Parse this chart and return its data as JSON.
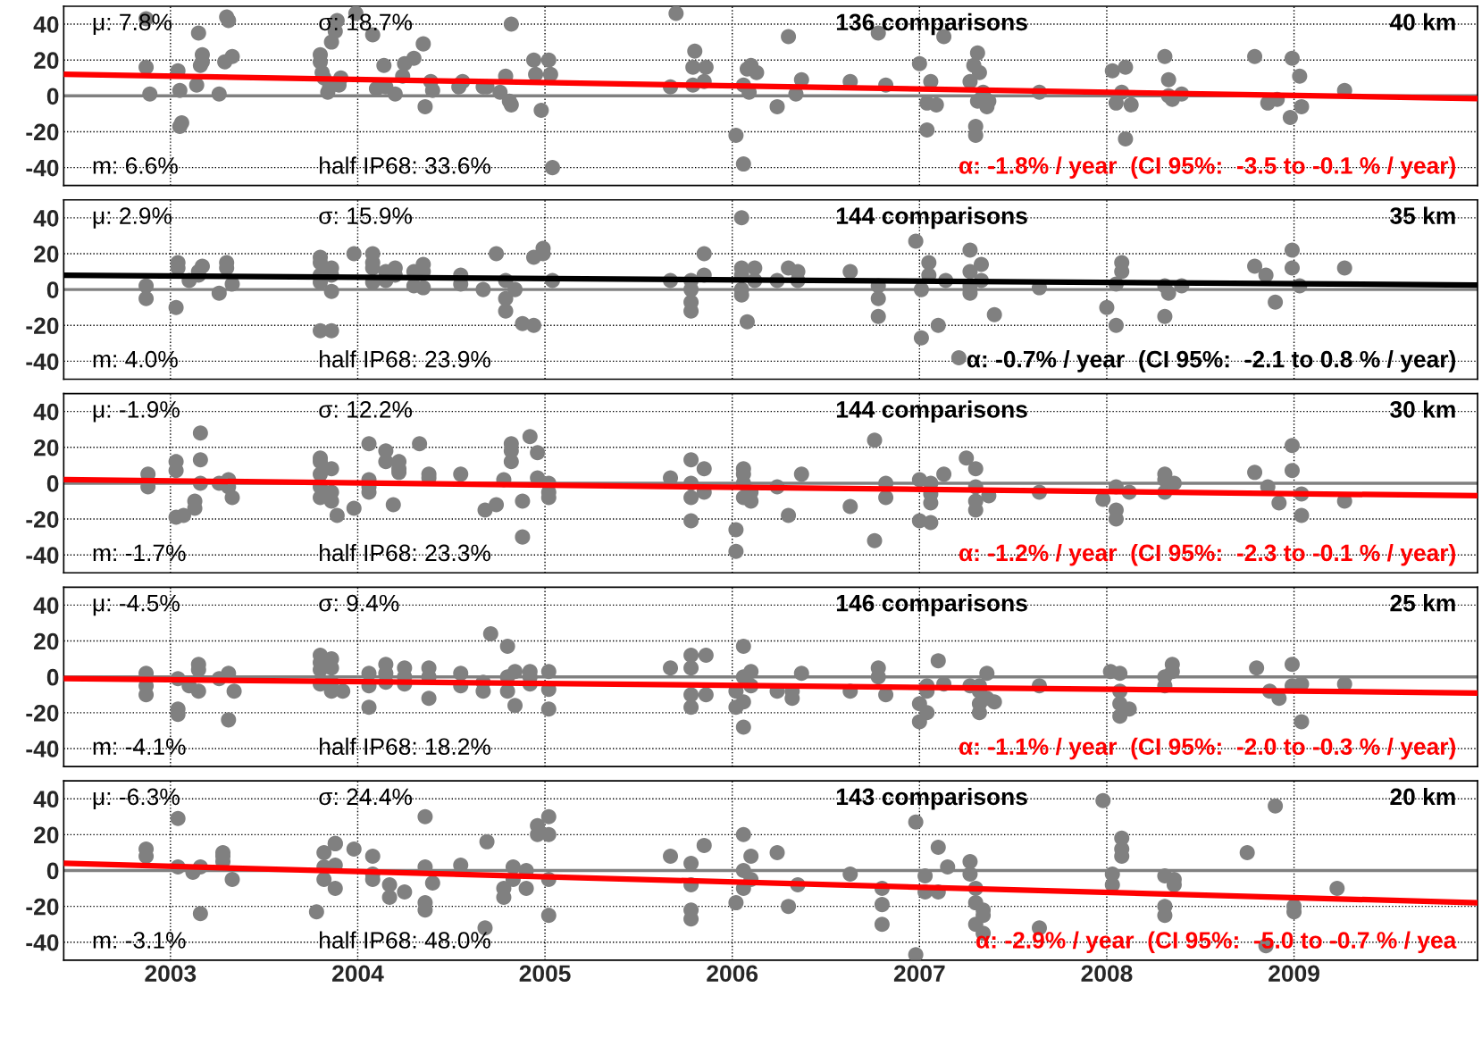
{
  "chart_data": [
    {
      "type": "scatter",
      "xlim": [
        2002.43,
        2009.98
      ],
      "ylim": [
        -50,
        50
      ],
      "xticks": [
        2003,
        2004,
        2005,
        2006,
        2007,
        2008,
        2009
      ],
      "yticks": [
        -40,
        -20,
        0,
        20,
        40
      ],
      "grid": true,
      "tick_labels": "y",
      "ref_lines": [
        {
          "axis": "y",
          "value": 0,
          "color": "#808080"
        }
      ],
      "annotations": [
        "μ: 7.8%",
        "σ: 18.7%",
        "136 comparisons",
        "40 km",
        "m: 6.6%",
        "half IP68: 33.6%",
        "α: -1.8% / year  (CI 95%:  -3.5 to -0.1 % / year)"
      ],
      "series": [
        {
          "color": "#808080",
          "marker": "circle",
          "x": [
            2002.87,
            2002.87,
            2002.89,
            2003.04,
            2003.05,
            2003.06,
            2003.05,
            2003.14,
            2003.15,
            2003.16,
            2003.17,
            2003.17,
            2003.26,
            2003.3,
            2003.31,
            2003.29,
            2003.33,
            2003.8,
            2003.81,
            2003.82,
            2003.84,
            2003.85,
            2003.86,
            2003.88,
            2003.89,
            2003.9,
            2003.91,
            2003.8,
            2003.99,
            2004.08,
            2004.1,
            2004.14,
            2004.15,
            2004.2,
            2004.24,
            2004.25,
            2004.3,
            2004.35,
            2004.36,
            2004.39,
            2004.4,
            2004.54,
            2004.56,
            2004.67,
            2004.69,
            2004.76,
            2004.79,
            2004.81,
            2004.82,
            2004.82,
            2004.94,
            2004.95,
            2004.98,
            2005.02,
            2005.04,
            2005.03,
            2005.67,
            2005.7,
            2005.8,
            2005.79,
            2005.79,
            2005.85,
            2005.86,
            2006.02,
            2006.06,
            2006.06,
            2006.08,
            2006.09,
            2006.1,
            2006.13,
            2006.24,
            2006.3,
            2006.34,
            2006.37,
            2006.63,
            2006.78,
            2006.82,
            2007.0,
            2007.04,
            2007.06,
            2007.04,
            2007.09,
            2007.13,
            2007.27,
            2007.29,
            2007.31,
            2007.31,
            2007.32,
            2007.3,
            2007.3,
            2007.34,
            2007.36,
            2007.37,
            2007.64,
            2008.03,
            2008.05,
            2008.08,
            2008.1,
            2008.1,
            2008.13,
            2008.31,
            2008.33,
            2008.33,
            2008.35,
            2008.4,
            2008.79,
            2008.86,
            2008.91,
            2008.98,
            2008.99,
            2009.03,
            2009.04,
            2009.27
          ],
          "values": [
            43,
            16,
            1,
            14,
            3,
            -15,
            -17,
            6,
            35,
            17,
            23,
            19,
            1,
            44,
            42,
            19,
            22,
            19,
            13,
            10,
            2,
            5,
            30,
            36,
            42,
            6,
            10,
            23,
            46,
            34,
            4,
            17,
            5,
            1,
            11,
            18,
            21,
            29,
            -6,
            8,
            3,
            5,
            8,
            5,
            5,
            2,
            11,
            -3,
            -5,
            40,
            20,
            12,
            -8,
            20,
            -40,
            12,
            5,
            46,
            25,
            16,
            6,
            8,
            16,
            -22,
            -38,
            6,
            15,
            2,
            17,
            13,
            -6,
            33,
            1,
            9,
            8,
            35,
            6,
            18,
            -19,
            8,
            -4,
            -5,
            33,
            8,
            17,
            24,
            -3,
            13,
            -17,
            -22,
            2,
            -6,
            -3,
            2,
            14,
            -4,
            2,
            16,
            -24,
            -5,
            22,
            9,
            0,
            -2,
            1,
            22,
            -4,
            -2,
            -12,
            21,
            11,
            -6,
            3
          ]
        },
        {
          "type": "line",
          "color": "#ff0000",
          "x": [
            2002.43,
            2009.98
          ],
          "values": [
            12,
            -1.5
          ]
        }
      ]
    },
    {
      "type": "scatter",
      "xlim": [
        2002.43,
        2009.98
      ],
      "ylim": [
        -50,
        50
      ],
      "xticks": [
        2003,
        2004,
        2005,
        2006,
        2007,
        2008,
        2009
      ],
      "yticks": [
        -40,
        -20,
        0,
        20,
        40
      ],
      "grid": true,
      "tick_labels": "y",
      "ref_lines": [
        {
          "axis": "y",
          "value": 0,
          "color": "#808080"
        }
      ],
      "annotations": [
        "μ: 2.9%",
        "σ: 15.9%",
        "144 comparisons",
        "35 km",
        "m: 4.0%",
        "half IP68: 23.9%",
        "α: -0.7% / year  (CI 95%:  -2.1 to 0.8 % / year)"
      ],
      "series": [
        {
          "color": "#808080",
          "marker": "circle",
          "x": [
            2002.87,
            2002.87,
            2003.03,
            2003.04,
            2003.04,
            2003.1,
            2003.15,
            2003.15,
            2003.17,
            2003.26,
            2003.3,
            2003.3,
            2003.33,
            2003.8,
            2003.8,
            2003.8,
            2003.8,
            2003.8,
            2003.86,
            2003.86,
            2003.86,
            2003.86,
            2003.98,
            2004.08,
            2004.08,
            2004.08,
            2004.08,
            2004.15,
            2004.15,
            2004.2,
            2004.2,
            2004.3,
            2004.3,
            2004.35,
            2004.35,
            2004.35,
            2004.55,
            2004.55,
            2004.67,
            2004.74,
            2004.79,
            2004.79,
            2004.79,
            2004.84,
            2004.88,
            2004.94,
            2004.94,
            2004.99,
            2004.99,
            2005.04,
            2005.67,
            2005.78,
            2005.78,
            2005.78,
            2005.78,
            2005.85,
            2005.85,
            2006.05,
            2006.05,
            2006.05,
            2006.05,
            2006.05,
            2006.08,
            2006.12,
            2006.12,
            2006.24,
            2006.3,
            2006.35,
            2006.35,
            2006.63,
            2006.78,
            2006.78,
            2006.78,
            2006.98,
            2007.01,
            2007.01,
            2007.05,
            2007.05,
            2007.1,
            2007.14,
            2007.21,
            2007.27,
            2007.27,
            2007.27,
            2007.27,
            2007.33,
            2007.33,
            2007.4,
            2007.64,
            2008.0,
            2008.05,
            2008.05,
            2008.08,
            2008.08,
            2008.31,
            2008.31,
            2008.33,
            2008.4,
            2008.79,
            2008.85,
            2008.9,
            2008.99,
            2008.99,
            2009.03,
            2009.27
          ],
          "values": [
            2,
            -5,
            -10,
            15,
            12,
            5,
            8,
            10,
            13,
            -2,
            15,
            12,
            3,
            18,
            15,
            8,
            4,
            -23,
            12,
            8,
            -1,
            -23,
            20,
            20,
            15,
            12,
            4,
            10,
            5,
            12,
            8,
            10,
            2,
            14,
            10,
            1,
            8,
            3,
            0,
            20,
            5,
            -5,
            -12,
            0,
            -19,
            -20,
            18,
            23,
            20,
            5,
            5,
            -12,
            -7,
            0,
            5,
            8,
            20,
            40,
            12,
            8,
            0,
            -3,
            -18,
            12,
            5,
            5,
            12,
            10,
            5,
            10,
            -15,
            -5,
            2,
            27,
            -27,
            0,
            15,
            8,
            -20,
            5,
            -38,
            22,
            10,
            2,
            -2,
            14,
            5,
            -14,
            1,
            -10,
            -20,
            3,
            15,
            10,
            -15,
            2,
            -2,
            2,
            13,
            8,
            -7,
            22,
            12,
            2,
            12
          ]
        },
        {
          "type": "line",
          "color": "#000000",
          "x": [
            2002.43,
            2009.98
          ],
          "values": [
            8,
            2.5
          ]
        }
      ]
    },
    {
      "type": "scatter",
      "xlim": [
        2002.43,
        2009.98
      ],
      "ylim": [
        -50,
        50
      ],
      "xticks": [
        2003,
        2004,
        2005,
        2006,
        2007,
        2008,
        2009
      ],
      "yticks": [
        -40,
        -20,
        0,
        20,
        40
      ],
      "grid": true,
      "tick_labels": "y",
      "ref_lines": [
        {
          "axis": "y",
          "value": 0,
          "color": "#808080"
        }
      ],
      "annotations": [
        "μ: -1.9%",
        "σ: 12.2%",
        "144 comparisons",
        "30 km",
        "m: -1.7%",
        "half IP68: 23.3%",
        "α: -1.2% / year  (CI 95%:  -2.3 to -0.1 % / year)"
      ],
      "series": [
        {
          "color": "#808080",
          "marker": "circle",
          "x": [
            2002.88,
            2002.88,
            2003.03,
            2003.03,
            2003.03,
            2003.07,
            2003.13,
            2003.13,
            2003.16,
            2003.16,
            2003.16,
            2003.26,
            2003.31,
            2003.31,
            2003.33,
            2003.8,
            2003.8,
            2003.8,
            2003.8,
            2003.8,
            2003.86,
            2003.86,
            2003.86,
            2003.89,
            2003.98,
            2004.06,
            2004.06,
            2004.06,
            2004.06,
            2004.15,
            2004.15,
            2004.19,
            2004.22,
            2004.22,
            2004.22,
            2004.33,
            2004.38,
            2004.38,
            2004.55,
            2004.68,
            2004.74,
            2004.78,
            2004.82,
            2004.82,
            2004.82,
            2004.88,
            2004.88,
            2004.92,
            2004.96,
            2004.96,
            2005.02,
            2005.02,
            2005.02,
            2005.67,
            2005.78,
            2005.78,
            2005.78,
            2005.78,
            2005.85,
            2005.85,
            2006.02,
            2006.02,
            2006.06,
            2006.06,
            2006.06,
            2006.06,
            2006.1,
            2006.1,
            2006.24,
            2006.3,
            2006.37,
            2006.63,
            2006.76,
            2006.76,
            2006.82,
            2006.82,
            2007.0,
            2007.0,
            2007.06,
            2007.06,
            2007.06,
            2007.06,
            2007.13,
            2007.25,
            2007.3,
            2007.3,
            2007.3,
            2007.3,
            2007.37,
            2007.64,
            2007.98,
            2008.05,
            2008.05,
            2008.05,
            2008.12,
            2008.31,
            2008.31,
            2008.31,
            2008.36,
            2008.79,
            2008.86,
            2008.92,
            2008.99,
            2008.99,
            2009.04,
            2009.04,
            2009.27
          ],
          "values": [
            -2,
            5,
            12,
            7,
            -19,
            -18,
            -10,
            -14,
            13,
            28,
            0,
            0,
            2,
            -2,
            -8,
            14,
            12,
            5,
            -2,
            -8,
            8,
            -5,
            -10,
            -18,
            -14,
            22,
            -5,
            -2,
            2,
            18,
            12,
            -12,
            12,
            8,
            6,
            22,
            3,
            5,
            5,
            -15,
            -12,
            2,
            22,
            18,
            12,
            -10,
            -30,
            26,
            17,
            3,
            0,
            -5,
            -8,
            3,
            -21,
            -8,
            0,
            13,
            -5,
            8,
            -26,
            -38,
            8,
            5,
            0,
            -8,
            -10,
            -5,
            -2,
            -18,
            5,
            -13,
            -32,
            24,
            -8,
            0,
            -21,
            2,
            -22,
            -11,
            -6,
            0,
            5,
            14,
            8,
            -2,
            -10,
            -15,
            -7,
            -5,
            -9,
            -15,
            -20,
            -2,
            -5,
            -5,
            5,
            2,
            0,
            6,
            -2,
            -11,
            21,
            7,
            -6,
            -18,
            -10
          ]
        },
        {
          "type": "line",
          "color": "#ff0000",
          "x": [
            2002.43,
            2009.98
          ],
          "values": [
            2,
            -7
          ]
        }
      ]
    },
    {
      "type": "scatter",
      "xlim": [
        2002.43,
        2009.98
      ],
      "ylim": [
        -50,
        50
      ],
      "xticks": [
        2003,
        2004,
        2005,
        2006,
        2007,
        2008,
        2009
      ],
      "yticks": [
        -40,
        -20,
        0,
        20,
        40
      ],
      "grid": true,
      "tick_labels": "y",
      "ref_lines": [
        {
          "axis": "y",
          "value": 0,
          "color": "#808080"
        }
      ],
      "annotations": [
        "μ: -4.5%",
        "σ: 9.4%",
        "146 comparisons",
        "25 km",
        "m: -4.1%",
        "half IP68: 18.2%",
        "α: -1.1% / year  (CI 95%:  -2.0 to -0.3 % / year)"
      ],
      "series": [
        {
          "color": "#808080",
          "marker": "circle",
          "x": [
            2002.87,
            2002.87,
            2002.87,
            2003.04,
            2003.04,
            2003.04,
            2003.1,
            2003.15,
            2003.15,
            2003.15,
            2003.26,
            2003.31,
            2003.31,
            2003.34,
            2003.8,
            2003.8,
            2003.8,
            2003.8,
            2003.86,
            2003.86,
            2003.86,
            2003.86,
            2003.92,
            2004.06,
            2004.06,
            2004.06,
            2004.15,
            2004.15,
            2004.15,
            2004.25,
            2004.25,
            2004.25,
            2004.38,
            2004.38,
            2004.38,
            2004.55,
            2004.55,
            2004.67,
            2004.67,
            2004.71,
            2004.8,
            2004.8,
            2004.8,
            2004.84,
            2004.84,
            2004.92,
            2004.92,
            2004.92,
            2005.02,
            2005.02,
            2005.02,
            2005.67,
            2005.78,
            2005.78,
            2005.78,
            2005.78,
            2005.86,
            2005.86,
            2006.02,
            2006.02,
            2006.06,
            2006.06,
            2006.06,
            2006.06,
            2006.1,
            2006.1,
            2006.24,
            2006.32,
            2006.32,
            2006.37,
            2006.63,
            2006.78,
            2006.78,
            2006.82,
            2007.0,
            2007.0,
            2007.04,
            2007.04,
            2007.04,
            2007.1,
            2007.13,
            2007.27,
            2007.32,
            2007.32,
            2007.32,
            2007.32,
            2007.36,
            2007.36,
            2007.4,
            2007.64,
            2008.02,
            2008.07,
            2008.07,
            2008.07,
            2008.07,
            2008.12,
            2008.31,
            2008.31,
            2008.35,
            2008.35,
            2008.8,
            2008.87,
            2008.92,
            2008.99,
            2008.99,
            2009.04,
            2009.04,
            2009.27
          ],
          "values": [
            -5,
            -10,
            2,
            -21,
            -18,
            -1,
            -5,
            7,
            4,
            -8,
            -1,
            -24,
            2,
            -8,
            12,
            8,
            4,
            -4,
            10,
            5,
            -8,
            -3,
            -8,
            -17,
            -5,
            2,
            7,
            -3,
            2,
            0,
            5,
            -4,
            -12,
            5,
            0,
            -5,
            2,
            -8,
            -3,
            24,
            0,
            -8,
            17,
            -16,
            3,
            0,
            -4,
            3,
            3,
            -18,
            -7,
            5,
            -17,
            12,
            5,
            -10,
            12,
            -10,
            -17,
            -8,
            17,
            -28,
            -14,
            0,
            3,
            -5,
            -8,
            -12,
            -8,
            2,
            -8,
            5,
            0,
            -10,
            -15,
            -25,
            -20,
            -5,
            -8,
            9,
            -4,
            -5,
            -15,
            -20,
            -8,
            -5,
            2,
            -12,
            -14,
            -5,
            3,
            -8,
            -15,
            -22,
            2,
            -18,
            -5,
            0,
            7,
            3,
            5,
            -8,
            -12,
            7,
            -5,
            -25,
            -4,
            -4
          ]
        },
        {
          "type": "line",
          "color": "#ff0000",
          "x": [
            2002.43,
            2009.98
          ],
          "values": [
            -1,
            -9
          ]
        }
      ]
    },
    {
      "type": "scatter",
      "xlim": [
        2002.43,
        2009.98
      ],
      "ylim": [
        -50,
        50
      ],
      "xticks": [
        2003,
        2004,
        2005,
        2006,
        2007,
        2008,
        2009
      ],
      "yticks": [
        -40,
        -20,
        0,
        20,
        40
      ],
      "grid": true,
      "ref_lines": [
        {
          "axis": "y",
          "value": 0,
          "color": "#808080"
        }
      ],
      "annotations": [
        "μ: -6.3%",
        "σ: 24.4%",
        "143 comparisons",
        "20 km",
        "m: -3.1%",
        "half IP68: 48.0%",
        "α: -2.9% / year  (CI 95%:  -5.0 to -0.7 % / yea"
      ],
      "series": [
        {
          "color": "#808080",
          "marker": "circle",
          "x": [
            2002.87,
            2002.87,
            2003.04,
            2003.04,
            2003.12,
            2003.16,
            2003.16,
            2003.28,
            2003.28,
            2003.28,
            2003.33,
            2003.78,
            2003.82,
            2003.82,
            2003.82,
            2003.88,
            2003.88,
            2003.88,
            2003.88,
            2003.98,
            2004.08,
            2004.08,
            2004.08,
            2004.17,
            2004.17,
            2004.25,
            2004.36,
            2004.36,
            2004.36,
            2004.36,
            2004.4,
            2004.55,
            2004.68,
            2004.69,
            2004.78,
            2004.78,
            2004.83,
            2004.83,
            2004.9,
            2004.9,
            2004.96,
            2004.96,
            2005.02,
            2005.02,
            2005.02,
            2005.02,
            2005.67,
            2005.78,
            2005.78,
            2005.78,
            2005.78,
            2005.85,
            2006.02,
            2006.06,
            2006.06,
            2006.06,
            2006.1,
            2006.1,
            2006.24,
            2006.3,
            2006.35,
            2006.63,
            2006.8,
            2006.8,
            2006.8,
            2006.98,
            2006.98,
            2007.03,
            2007.03,
            2007.1,
            2007.1,
            2007.15,
            2007.27,
            2007.27,
            2007.3,
            2007.3,
            2007.3,
            2007.34,
            2007.34,
            2007.34,
            2007.64,
            2007.98,
            2008.03,
            2008.03,
            2008.08,
            2008.08,
            2008.08,
            2008.31,
            2008.31,
            2008.31,
            2008.36,
            2008.36,
            2008.75,
            2008.85,
            2008.9,
            2009.0,
            2009.0,
            2009.23
          ],
          "values": [
            12,
            8,
            29,
            2,
            -1,
            -24,
            2,
            5,
            8,
            10,
            -5,
            -23,
            10,
            2,
            -5,
            15,
            15,
            3,
            -10,
            12,
            8,
            -5,
            -2,
            -15,
            -8,
            -12,
            30,
            2,
            -18,
            -22,
            -7,
            3,
            -32,
            16,
            -15,
            -10,
            2,
            -5,
            -10,
            0,
            25,
            20,
            30,
            20,
            -5,
            -25,
            8,
            -22,
            -27,
            -8,
            4,
            14,
            -18,
            20,
            0,
            -10,
            -5,
            8,
            10,
            -20,
            -8,
            -2,
            -10,
            -30,
            -19,
            27,
            -47,
            -12,
            -3,
            13,
            -12,
            2,
            5,
            -2,
            -30,
            -18,
            -10,
            -22,
            -25,
            -35,
            -32,
            39,
            -8,
            -2,
            18,
            12,
            8,
            -3,
            -20,
            -25,
            -8,
            -5,
            10,
            -42,
            36,
            -23,
            -20,
            -10
          ]
        },
        {
          "type": "line",
          "color": "#ff0000",
          "x": [
            2002.43,
            2009.98
          ],
          "values": [
            4,
            -18
          ]
        }
      ]
    }
  ]
}
